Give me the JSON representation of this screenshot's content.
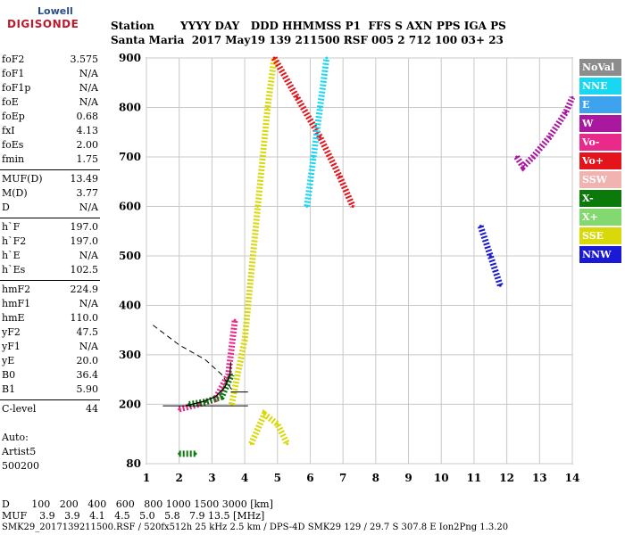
{
  "logo": {
    "brand": "Lowell",
    "product": "DIGISONDE"
  },
  "header": {
    "row1": "Station       YYYY DAY   DDD HHMMSS P1  FFS S AXN PPS IGA PS",
    "row2": "Santa Maria  2017 May19 139 211500 RSF 005 2 712 100 03+ 23"
  },
  "params": [
    {
      "k": "foF2",
      "v": "3.575"
    },
    {
      "k": "foF1",
      "v": "N/A"
    },
    {
      "k": "foF1p",
      "v": "N/A"
    },
    {
      "k": "foE",
      "v": "N/A"
    },
    {
      "k": "foEp",
      "v": "0.68"
    },
    {
      "k": "fxI",
      "v": "4.13"
    },
    {
      "k": "foEs",
      "v": "2.00"
    },
    {
      "k": "fmin",
      "v": "1.75"
    },
    {
      "k": "MUF(D)",
      "v": "13.49"
    },
    {
      "k": "M(D)",
      "v": "3.77"
    },
    {
      "k": "D",
      "v": "N/A"
    },
    {
      "k": "h`F",
      "v": "197.0"
    },
    {
      "k": "h`F2",
      "v": "197.0"
    },
    {
      "k": "h`E",
      "v": "N/A"
    },
    {
      "k": "h`Es",
      "v": "102.5"
    },
    {
      "k": "hmF2",
      "v": "224.9"
    },
    {
      "k": "hmF1",
      "v": "N/A"
    },
    {
      "k": "hmE",
      "v": "110.0"
    },
    {
      "k": "yF2",
      "v": "47.5"
    },
    {
      "k": "yF1",
      "v": "N/A"
    },
    {
      "k": "yE",
      "v": "20.0"
    },
    {
      "k": "B0",
      "v": "36.4"
    },
    {
      "k": "B1",
      "v": "5.90"
    },
    {
      "k": "C-level",
      "v": "44"
    }
  ],
  "auto": {
    "line1": "Auto:",
    "line2": "Artist5",
    "line3": "500200"
  },
  "legend": [
    {
      "label": "NoVal",
      "color": "#8c8c8c"
    },
    {
      "label": "NNE",
      "color": "#19d7f0"
    },
    {
      "label": "E",
      "color": "#3ea3ee"
    },
    {
      "label": "W",
      "color": "#a9189e"
    },
    {
      "label": "Vo-",
      "color": "#ea2a8a"
    },
    {
      "label": "Vo+",
      "color": "#e5141c"
    },
    {
      "label": "SSW",
      "color": "#f1b3b0"
    },
    {
      "label": "X-",
      "color": "#0b7a0b"
    },
    {
      "label": "X+",
      "color": "#84d870"
    },
    {
      "label": "SSE",
      "color": "#d8d80a"
    },
    {
      "label": "NNW",
      "color": "#1a1ad6"
    }
  ],
  "bottom": {
    "d_row": "D       100   200   400   600   800 1000 1500 3000 [km]",
    "muf_row": "MUF    3.9   3.9   4.1   4.5   5.0   5.8   7.9 13.5 [MHz]",
    "footer": "SMK29_2017139211500.RSF / 520fx512h 25 kHz 2.5 km / DPS-4D SMK29 129 / 29.7 S 307.8 E Ion2Png 1.3.20"
  },
  "chart_data": {
    "type": "scatter",
    "title": "",
    "xlabel": "",
    "ylabel": "",
    "xlim": [
      1,
      14
    ],
    "ylim": [
      80,
      900
    ],
    "xticks": [
      1,
      2,
      3,
      4,
      5,
      6,
      7,
      8,
      9,
      10,
      11,
      12,
      13,
      14
    ],
    "yticks": [
      80,
      200,
      300,
      400,
      500,
      600,
      700,
      800,
      900
    ],
    "grid": true,
    "series": [
      {
        "color": "#a9189e",
        "x": [
          12.3,
          12.5,
          12.8,
          13.3,
          13.8,
          14
        ],
        "y": [
          700,
          680,
          700,
          740,
          790,
          820
        ]
      },
      {
        "color": "#d8d80a",
        "x": [
          3.6,
          4.0,
          4.4,
          4.7,
          4.9
        ],
        "y": [
          200,
          330,
          600,
          800,
          900
        ]
      },
      {
        "color": "#d8d80a",
        "x": [
          4.2,
          4.6,
          5.0,
          5.3
        ],
        "y": [
          120,
          180,
          160,
          120
        ]
      },
      {
        "color": "#ea2a8a",
        "x": [
          2.0,
          2.6,
          3.1,
          3.5,
          3.7
        ],
        "y": [
          190,
          200,
          210,
          260,
          370
        ]
      },
      {
        "color": "#0b7a0b",
        "x": [
          2.3,
          2.8,
          3.3,
          3.6
        ],
        "y": [
          200,
          205,
          215,
          260
        ]
      },
      {
        "color": "#0b7a0b",
        "x": [
          2.0,
          2.5
        ],
        "y": [
          100,
          100
        ]
      },
      {
        "color": "#e5141c",
        "x": [
          4.9,
          5.6,
          6.3,
          6.9,
          7.3
        ],
        "y": [
          900,
          820,
          740,
          660,
          600
        ]
      },
      {
        "color": "#19d7f0",
        "x": [
          5.9,
          6.1,
          6.3,
          6.5
        ],
        "y": [
          600,
          700,
          800,
          900
        ]
      },
      {
        "color": "#1a1ad6",
        "x": [
          11.2,
          11.5,
          11.8
        ],
        "y": [
          560,
          500,
          440
        ]
      }
    ],
    "profile": {
      "x": [
        2.2,
        2.7,
        3.1,
        3.4,
        3.55,
        3.575
      ],
      "y": [
        197,
        205,
        215,
        235,
        260,
        285
      ]
    },
    "muf_curve": {
      "x": [
        1.2,
        2.0,
        2.8,
        3.3,
        3.6
      ],
      "y": [
        360,
        320,
        290,
        260,
        230
      ]
    },
    "foF2_line": {
      "x": [
        3.575,
        4.1
      ],
      "y": [
        224.9,
        224.9
      ]
    },
    "hF_line": {
      "x": [
        1.5,
        4.1
      ],
      "y": [
        197,
        197
      ]
    }
  }
}
